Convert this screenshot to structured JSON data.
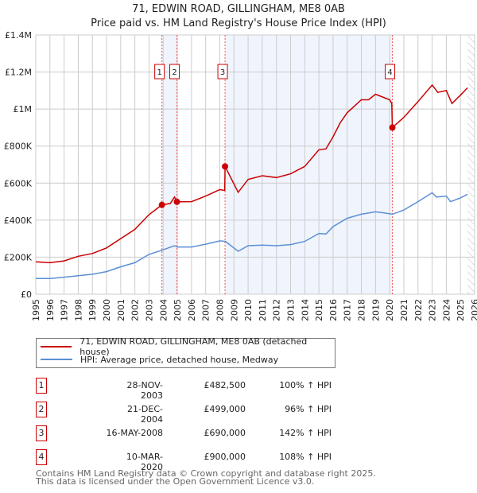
{
  "chart_data": {
    "type": "line",
    "title": "71, EDWIN ROAD, GILLINGHAM, ME8 0AB",
    "subtitle": "Price paid vs. HM Land Registry's House Price Index (HPI)",
    "xlim": [
      1995,
      2026
    ],
    "ylim": [
      0,
      1400000
    ],
    "x_ticks": [
      "1995",
      "1996",
      "1997",
      "1998",
      "1999",
      "2000",
      "2001",
      "2002",
      "2003",
      "2004",
      "2005",
      "2006",
      "2007",
      "2008",
      "2009",
      "2010",
      "2011",
      "2012",
      "2013",
      "2014",
      "2015",
      "2016",
      "2017",
      "2018",
      "2019",
      "2020",
      "2021",
      "2022",
      "2023",
      "2024",
      "2025",
      "2026"
    ],
    "y_ticks": [
      {
        "v": 0,
        "label": "£0"
      },
      {
        "v": 200000,
        "label": "£200K"
      },
      {
        "v": 400000,
        "label": "£400K"
      },
      {
        "v": 600000,
        "label": "£600K"
      },
      {
        "v": 800000,
        "label": "£800K"
      },
      {
        "v": 1000000,
        "label": "£1M"
      },
      {
        "v": 1200000,
        "label": "£1.2M"
      },
      {
        "v": 1400000,
        "label": "£1.4M"
      }
    ],
    "grid": true,
    "series": [
      {
        "name": "71, EDWIN ROAD, GILLINGHAM, ME8 0AB (detached house)",
        "color": "#cc0000",
        "points": [
          [
            1995,
            175000
          ],
          [
            1996,
            170000
          ],
          [
            1997,
            180000
          ],
          [
            1998,
            205000
          ],
          [
            1999,
            220000
          ],
          [
            2000,
            250000
          ],
          [
            2001,
            300000
          ],
          [
            2002,
            350000
          ],
          [
            2003,
            430000
          ],
          [
            2003.91,
            482500
          ],
          [
            2004.5,
            490000
          ],
          [
            2004.8,
            525000
          ],
          [
            2004.97,
            499000
          ],
          [
            2006,
            500000
          ],
          [
            2007,
            530000
          ],
          [
            2008,
            565000
          ],
          [
            2008.35,
            560000
          ],
          [
            2008.37,
            690000
          ],
          [
            2009.3,
            550000
          ],
          [
            2010,
            620000
          ],
          [
            2011,
            640000
          ],
          [
            2012,
            630000
          ],
          [
            2013,
            650000
          ],
          [
            2014,
            690000
          ],
          [
            2015,
            780000
          ],
          [
            2015.5,
            785000
          ],
          [
            2016,
            850000
          ],
          [
            2016.5,
            925000
          ],
          [
            2017,
            980000
          ],
          [
            2018,
            1050000
          ],
          [
            2018.5,
            1050000
          ],
          [
            2019,
            1080000
          ],
          [
            2020,
            1050000
          ],
          [
            2020.15,
            1030000
          ],
          [
            2020.19,
            900000
          ],
          [
            2021,
            955000
          ],
          [
            2022,
            1040000
          ],
          [
            2023,
            1130000
          ],
          [
            2023.4,
            1090000
          ],
          [
            2024,
            1100000
          ],
          [
            2024.4,
            1030000
          ],
          [
            2025,
            1075000
          ],
          [
            2025.5,
            1115000
          ]
        ]
      },
      {
        "name": "HPI: Average price, detached house, Medway",
        "color": "#5b8fd6",
        "points": [
          [
            1995,
            85000
          ],
          [
            1996,
            85000
          ],
          [
            1997,
            92000
          ],
          [
            1998,
            100000
          ],
          [
            1999,
            108000
          ],
          [
            2000,
            122000
          ],
          [
            2001,
            148000
          ],
          [
            2002,
            170000
          ],
          [
            2003,
            215000
          ],
          [
            2004,
            240000
          ],
          [
            2004.8,
            262000
          ],
          [
            2005,
            255000
          ],
          [
            2006,
            255000
          ],
          [
            2007,
            270000
          ],
          [
            2008,
            288000
          ],
          [
            2008.4,
            285000
          ],
          [
            2009.3,
            232000
          ],
          [
            2010,
            262000
          ],
          [
            2011,
            265000
          ],
          [
            2012,
            262000
          ],
          [
            2013,
            268000
          ],
          [
            2014,
            285000
          ],
          [
            2015,
            328000
          ],
          [
            2015.5,
            325000
          ],
          [
            2016,
            365000
          ],
          [
            2017,
            410000
          ],
          [
            2018,
            432000
          ],
          [
            2019,
            445000
          ],
          [
            2019.5,
            440000
          ],
          [
            2020.2,
            432000
          ],
          [
            2021,
            455000
          ],
          [
            2022,
            500000
          ],
          [
            2023,
            548000
          ],
          [
            2023.3,
            525000
          ],
          [
            2024,
            530000
          ],
          [
            2024.3,
            500000
          ],
          [
            2025,
            520000
          ],
          [
            2025.5,
            540000
          ]
        ]
      }
    ],
    "sales": [
      {
        "n": "1",
        "x": 2003.91,
        "y": 482500,
        "date": "28-NOV-2003",
        "price": "£482,500",
        "hpi": "100% ↑ HPI"
      },
      {
        "n": "2",
        "x": 2004.97,
        "y": 499000,
        "date": "21-DEC-2004",
        "price": "£499,000",
        "hpi": "96% ↑ HPI"
      },
      {
        "n": "3",
        "x": 2008.37,
        "y": 690000,
        "date": "16-MAY-2008",
        "price": "£690,000",
        "hpi": "142% ↑ HPI"
      },
      {
        "n": "4",
        "x": 2020.19,
        "y": 900000,
        "date": "10-MAR-2020",
        "price": "£900,000",
        "hpi": "108% ↑ HPI"
      }
    ],
    "shaded_ranges": [
      [
        2003.91,
        2004.97
      ],
      [
        2008.37,
        2020.19
      ]
    ],
    "forecast_from": 2025.5,
    "legend_placement": "bottom"
  },
  "footer": [
    "Contains HM Land Registry data © Crown copyright and database right 2025.",
    "This data is licensed under the Open Government Licence v3.0."
  ]
}
